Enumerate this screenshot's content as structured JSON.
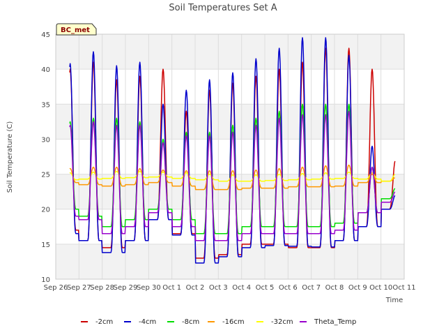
{
  "chart_data": {
    "type": "line",
    "title": "Soil Temperatures Set A",
    "xlabel": "Time",
    "ylabel": "Soil Temperature (C)",
    "badge": "BC_met",
    "ylim": [
      10,
      45
    ],
    "xlim": [
      0,
      15
    ],
    "y_ticks": [
      10,
      15,
      20,
      25,
      30,
      35,
      40,
      45
    ],
    "x_ticks": [
      "Sep 26",
      "Sep 27",
      "Sep 28",
      "Sep 29",
      "Sep 30",
      "Oct 1",
      "Oct 2",
      "Oct 3",
      "Oct 4",
      "Oct 5",
      "Oct 6",
      "Oct 7",
      "Oct 8",
      "Oct 9",
      "Oct 10",
      "Oct 11"
    ],
    "grid": true,
    "legend_position": "bottom",
    "x_unit": "days since Sep 26",
    "series": [
      {
        "name": "-2cm",
        "color": "#cc0000",
        "daily_max": [
          40.0,
          41.0,
          38.5,
          39.0,
          40.0,
          34.0,
          37.0,
          38.0,
          39.0,
          40.0,
          41.0,
          43.0,
          43.0,
          40.0,
          27.0
        ],
        "daily_min": [
          17.0,
          15.5,
          14.5,
          15.5,
          18.5,
          16.5,
          13.0,
          13.5,
          15.0,
          15.0,
          14.5,
          14.5,
          15.5,
          17.5,
          20.0
        ]
      },
      {
        "name": "-4cm",
        "color": "#0000cc",
        "daily_max": [
          40.8,
          42.5,
          40.5,
          41.0,
          35.0,
          37.0,
          38.5,
          39.5,
          41.5,
          43.0,
          44.5,
          44.5,
          42.0,
          29.0,
          22.0
        ],
        "daily_min": [
          16.5,
          15.5,
          13.8,
          15.5,
          18.5,
          16.3,
          12.3,
          13.2,
          14.5,
          14.8,
          14.7,
          14.6,
          15.5,
          17.5,
          20.0
        ]
      },
      {
        "name": "-8cm",
        "color": "#00dd00",
        "daily_max": [
          32.5,
          33.0,
          33.0,
          32.5,
          30.0,
          31.0,
          31.0,
          32.0,
          33.0,
          34.0,
          35.0,
          35.0,
          35.0,
          26.0,
          23.0
        ],
        "daily_min": [
          20.0,
          19.0,
          17.5,
          18.5,
          20.0,
          18.5,
          16.5,
          16.5,
          17.5,
          17.5,
          17.5,
          17.5,
          18.0,
          19.5,
          21.5
        ]
      },
      {
        "name": "-16cm",
        "color": "#ff9900",
        "daily_max": [
          25.8,
          26.0,
          26.0,
          25.8,
          25.6,
          25.5,
          25.5,
          25.5,
          25.6,
          25.8,
          26.0,
          26.2,
          26.3,
          25.0,
          24.5
        ],
        "daily_min": [
          23.8,
          23.5,
          23.3,
          23.5,
          23.8,
          23.3,
          22.8,
          22.8,
          23.0,
          23.0,
          23.2,
          23.2,
          23.3,
          23.8,
          24.0
        ]
      },
      {
        "name": "-32cm",
        "color": "#ffff00",
        "daily_max": [
          25.2,
          25.3,
          25.4,
          25.4,
          25.3,
          25.2,
          25.0,
          24.9,
          24.9,
          25.0,
          25.1,
          25.2,
          25.3,
          25.2,
          25.0
        ],
        "daily_min": [
          24.2,
          24.3,
          24.4,
          24.5,
          24.6,
          24.4,
          24.2,
          24.0,
          24.0,
          24.1,
          24.2,
          24.3,
          24.4,
          24.3,
          24.0
        ]
      },
      {
        "name": "Theta_Temp",
        "color": "#9900cc",
        "daily_max": [
          32.0,
          32.5,
          32.0,
          32.0,
          29.5,
          30.5,
          30.5,
          31.0,
          32.0,
          33.0,
          33.5,
          33.5,
          34.0,
          26.0,
          22.5
        ],
        "daily_min": [
          19.0,
          18.5,
          16.5,
          17.5,
          19.5,
          17.5,
          15.5,
          15.5,
          16.5,
          16.5,
          16.5,
          16.5,
          17.0,
          19.5,
          21.0
        ]
      }
    ]
  }
}
